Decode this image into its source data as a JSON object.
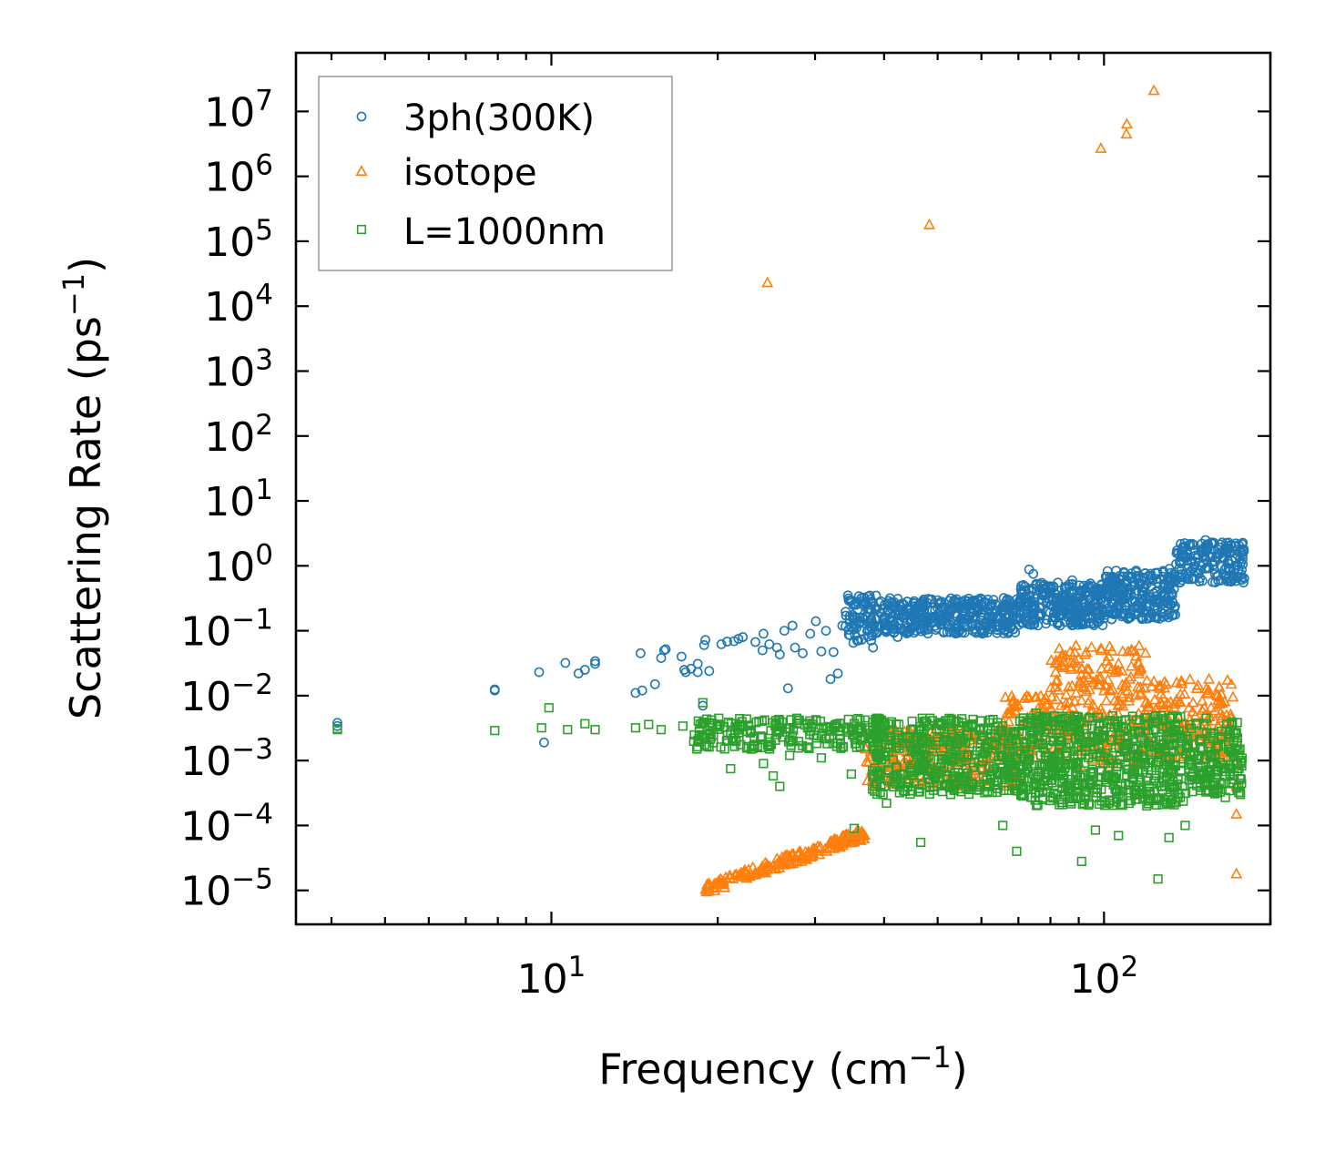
{
  "chart_data": {
    "type": "scatter",
    "title": "",
    "xlabel": "Frequency (cm",
    "xlabel_sup": "−1",
    "xlabel_end": ")",
    "ylabel": "Scattering Rate (ps",
    "ylabel_sup": "−1",
    "ylabel_end": ")",
    "xscale": "log",
    "yscale": "log",
    "xlim": [
      3.45,
      200
    ],
    "ylim": [
      3e-06,
      80000000.0
    ],
    "grid": false,
    "legend_position": "top-left",
    "x_ticks": [
      {
        "value": 10,
        "base": "10",
        "exp": "1"
      },
      {
        "value": 100,
        "base": "10",
        "exp": "2"
      }
    ],
    "y_ticks": [
      {
        "value": 1e-05,
        "base": "10",
        "exp": "−5"
      },
      {
        "value": 0.0001,
        "base": "10",
        "exp": "−4"
      },
      {
        "value": 0.001,
        "base": "10",
        "exp": "−3"
      },
      {
        "value": 0.01,
        "base": "10",
        "exp": "−2"
      },
      {
        "value": 0.1,
        "base": "10",
        "exp": "−1"
      },
      {
        "value": 1,
        "base": "10",
        "exp": "0"
      },
      {
        "value": 10,
        "base": "10",
        "exp": "1"
      },
      {
        "value": 100,
        "base": "10",
        "exp": "2"
      },
      {
        "value": 1000,
        "base": "10",
        "exp": "3"
      },
      {
        "value": 10000,
        "base": "10",
        "exp": "4"
      },
      {
        "value": 100000,
        "base": "10",
        "exp": "5"
      },
      {
        "value": 1000000,
        "base": "10",
        "exp": "6"
      },
      {
        "value": 10000000,
        "base": "10",
        "exp": "7"
      }
    ],
    "series": [
      {
        "name": "3ph(300K)",
        "marker": "circle",
        "color": "#1f77b4",
        "points": [
          [
            4.1,
            0.0038
          ],
          [
            4.1,
            0.0034
          ],
          [
            7.9,
            0.0125
          ],
          [
            7.9,
            0.012
          ],
          [
            9.5,
            0.023
          ],
          [
            9.7,
            0.0019
          ],
          [
            10.6,
            0.032
          ],
          [
            11.2,
            0.022
          ],
          [
            11.5,
            0.025
          ],
          [
            12,
            0.034
          ],
          [
            12,
            0.031
          ],
          [
            14.2,
            0.011
          ],
          [
            14.5,
            0.045
          ],
          [
            14.6,
            0.012
          ],
          [
            15.4,
            0.015
          ],
          [
            15.8,
            0.038
          ],
          [
            16,
            0.05
          ],
          [
            16.1,
            0.052
          ],
          [
            17.2,
            0.04
          ],
          [
            17.4,
            0.025
          ],
          [
            17.5,
            0.023
          ],
          [
            17.9,
            0.026
          ],
          [
            18.4,
            0.031
          ],
          [
            18.4,
            0.023
          ],
          [
            18.8,
            0.007
          ],
          [
            18.9,
            0.06
          ],
          [
            19,
            0.072
          ],
          [
            19.3,
            0.024
          ],
          [
            20.3,
            0.062
          ],
          [
            20.8,
            0.068
          ],
          [
            21.4,
            0.069
          ],
          [
            21.8,
            0.075
          ],
          [
            22.2,
            0.08
          ],
          [
            23.4,
            0.067
          ],
          [
            24.1,
            0.05
          ],
          [
            24.2,
            0.09
          ],
          [
            24.8,
            0.062
          ],
          [
            25.6,
            0.055
          ],
          [
            25.9,
            0.043
          ],
          [
            26.4,
            0.1
          ],
          [
            26.8,
            0.013
          ],
          [
            27.3,
            0.12
          ],
          [
            27.6,
            0.055
          ],
          [
            28.5,
            0.045
          ],
          [
            29.4,
            0.09
          ],
          [
            30.1,
            0.14
          ],
          [
            30.8,
            0.048
          ],
          [
            31.4,
            0.1
          ],
          [
            32,
            0.018
          ],
          [
            32.4,
            0.047
          ],
          [
            33,
            0.022
          ],
          [
            33.6,
            0.12
          ],
          [
            34.4,
            0.35
          ],
          [
            35.2,
            0.065
          ],
          [
            36.4,
            0.32
          ],
          [
            37.4,
            0.19
          ],
          [
            38.2,
            0.055
          ],
          [
            39.3,
            0.12
          ],
          [
            40.1,
            0.25
          ],
          [
            42.3,
            0.08
          ],
          [
            44.1,
            0.28
          ],
          [
            46.3,
            0.15
          ],
          [
            48.5,
            0.3
          ],
          [
            50.1,
            0.18
          ],
          [
            53.5,
            0.22
          ],
          [
            56.8,
            0.25
          ],
          [
            60.2,
            0.21
          ],
          [
            63.1,
            0.3
          ],
          [
            66.4,
            0.16
          ],
          [
            70.2,
            0.28
          ],
          [
            73.2,
            0.88
          ],
          [
            74.5,
            0.75
          ],
          [
            78.3,
            0.45
          ],
          [
            82.5,
            0.55
          ],
          [
            87.6,
            0.6
          ],
          [
            91.3,
            0.42
          ],
          [
            97.5,
            0.3
          ],
          [
            104.2,
            0.45
          ],
          [
            110.6,
            0.7
          ],
          [
            118.3,
            0.65
          ],
          [
            125.2,
            0.55
          ],
          [
            131.3,
            0.9
          ],
          [
            138.1,
            1.4
          ],
          [
            145.3,
            2.1
          ],
          [
            152.6,
            2.5
          ],
          [
            158.2,
            2.2
          ],
          [
            164.3,
            1.3
          ],
          [
            170.5,
            1.2
          ],
          [
            176.4,
            1.6
          ],
          [
            178.1,
            1.45
          ]
        ],
        "clusters": [
          {
            "x_range": [
              34,
              40
            ],
            "y_range": [
              0.07,
              0.35
            ],
            "n": 90
          },
          {
            "x_range": [
              40,
              70
            ],
            "y_range": [
              0.09,
              0.32
            ],
            "n": 360
          },
          {
            "x_range": [
              70,
              100
            ],
            "y_range": [
              0.12,
              0.55
            ],
            "n": 300
          },
          {
            "x_range": [
              100,
              135
            ],
            "y_range": [
              0.15,
              0.85
            ],
            "n": 260
          },
          {
            "x_range": [
              135,
              180
            ],
            "y_range": [
              0.55,
              2.3
            ],
            "n": 170
          }
        ]
      },
      {
        "name": "isotope",
        "marker": "triangle",
        "color": "#ff7f0e",
        "points": [
          [
            24.6,
            23000
          ],
          [
            48.3,
            180000
          ],
          [
            98.7,
            2700000
          ],
          [
            109.8,
            4500000
          ],
          [
            110,
            6400000
          ],
          [
            123.1,
            21000000
          ],
          [
            171.1,
            0.0095
          ],
          [
            173.6,
            1.8e-05
          ],
          [
            173.6,
            0.00015
          ],
          [
            173.6,
            0.0004
          ]
        ],
        "clusters": [
          {
            "x_range": [
              18.8,
              37
            ],
            "curve": [
              0.85,
              3.0
            ],
            "y_at_x0": 1e-05,
            "n": 180
          },
          {
            "x_range": [
              37,
              70
            ],
            "y_range": [
              0.0004,
              0.003
            ],
            "n": 300
          },
          {
            "x_range": [
              65,
              80
            ],
            "y_range": [
              0.001,
              0.01
            ],
            "n": 90
          },
          {
            "x_range": [
              80,
              120
            ],
            "y_range": [
              0.0008,
              0.06
            ],
            "n": 250
          },
          {
            "x_range": [
              120,
              170
            ],
            "y_range": [
              0.001,
              0.018
            ],
            "n": 180
          }
        ]
      },
      {
        "name": "L=1000nm",
        "marker": "square",
        "color": "#2ca02c",
        "points": [
          [
            4.1,
            0.003
          ],
          [
            4.1,
            0.0031
          ],
          [
            7.9,
            0.0029
          ],
          [
            9.6,
            0.0032
          ],
          [
            9.9,
            0.0065
          ],
          [
            10.7,
            0.003
          ],
          [
            11.5,
            0.0037
          ],
          [
            12,
            0.003
          ],
          [
            14.2,
            0.0032
          ],
          [
            15,
            0.0036
          ],
          [
            15.8,
            0.003
          ],
          [
            17.3,
            0.0034
          ],
          [
            18.8,
            0.0078
          ],
          [
            19.3,
            0.0038
          ],
          [
            21.1,
            0.00075
          ],
          [
            22,
            0.0035
          ],
          [
            23,
            0.0015
          ],
          [
            24.2,
            0.0009
          ],
          [
            25.2,
            0.00058
          ],
          [
            25.9,
            0.0004
          ],
          [
            27,
            0.0012
          ],
          [
            28.1,
            0.0042
          ],
          [
            30.8,
            0.0011
          ],
          [
            33.2,
            0.0029
          ],
          [
            34.9,
            0.00062
          ],
          [
            35.3,
            9e-05
          ],
          [
            40.4,
            0.00022
          ],
          [
            46.6,
            5.5e-05
          ],
          [
            52.8,
            0.0003
          ],
          [
            59.4,
            0.00035
          ],
          [
            65.6,
            0.0001
          ],
          [
            69.5,
            4e-05
          ],
          [
            75.3,
            0.0054
          ],
          [
            84.1,
            0.00021
          ],
          [
            91.1,
            2.8e-05
          ],
          [
            96.5,
            8.5e-05
          ],
          [
            106.2,
            7e-05
          ],
          [
            119.5,
            0.0002
          ],
          [
            125.2,
            1.5e-05
          ],
          [
            131.1,
            6.5e-05
          ],
          [
            140.2,
            0.0001
          ],
          [
            153.1,
            0.0045
          ],
          [
            165.8,
            0.00027
          ],
          [
            172.8,
            0.0026
          ],
          [
            176.6,
            0.0003
          ]
        ],
        "clusters": [
          {
            "x_range": [
              18,
              40
            ],
            "y_range": [
              0.0015,
              0.0045
            ],
            "n": 220
          },
          {
            "x_range": [
              38,
              70
            ],
            "y_range": [
              0.0003,
              0.0045
            ],
            "n": 420
          },
          {
            "x_range": [
              70,
              140
            ],
            "y_range": [
              0.0002,
              0.005
            ],
            "n": 600
          },
          {
            "x_range": [
              140,
              178
            ],
            "y_range": [
              0.0003,
              0.004
            ],
            "n": 170
          }
        ]
      }
    ]
  }
}
